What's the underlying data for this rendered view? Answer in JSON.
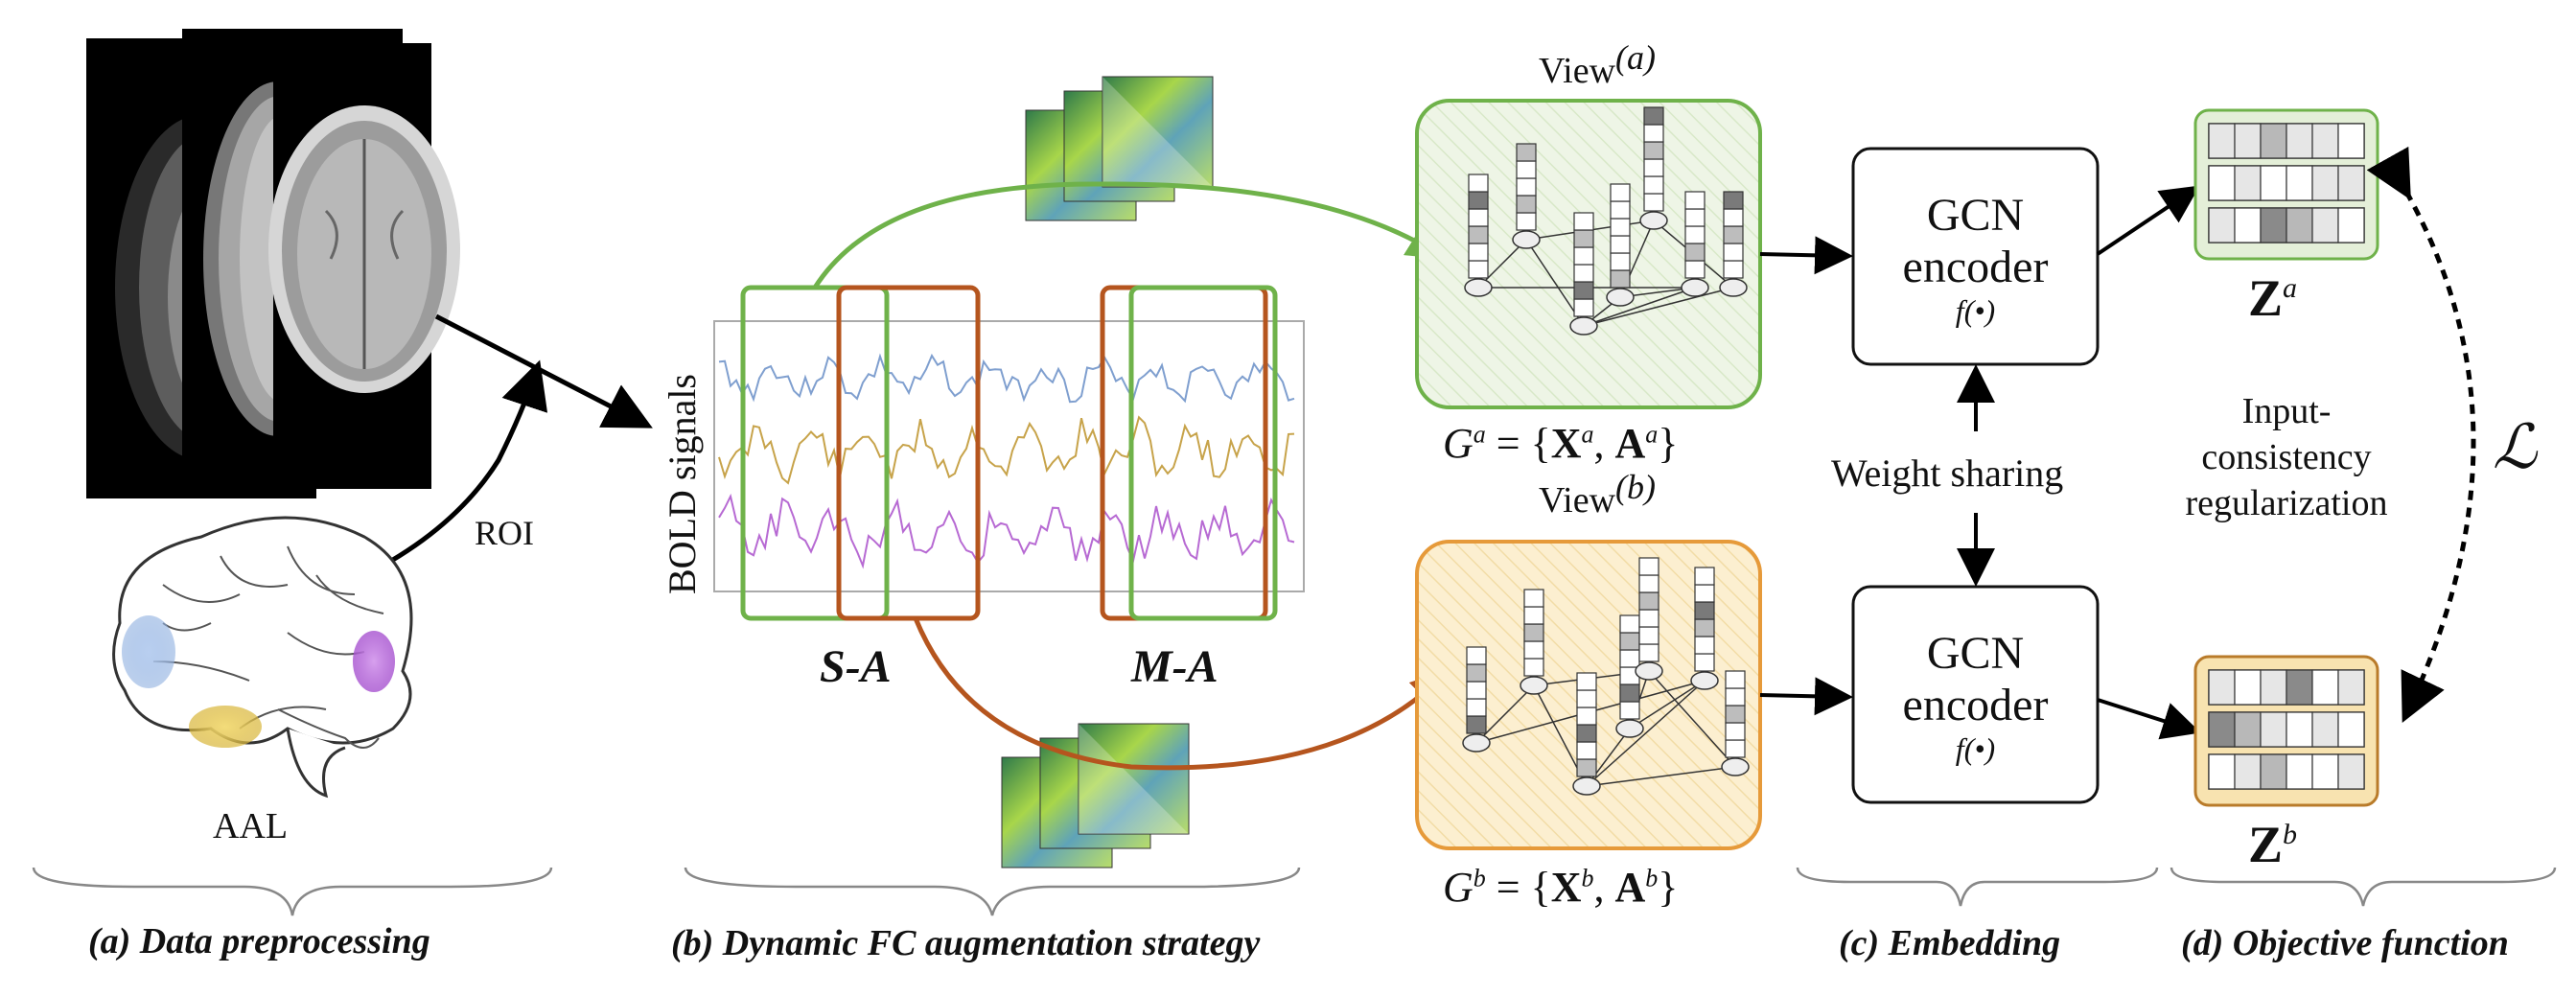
{
  "preprocessing": {
    "roi_label": "ROI",
    "atlas_label": "AAL",
    "section_label": "(a) Data preprocessing"
  },
  "augmentation": {
    "axis_label": "BOLD signals",
    "single_label": "S-A",
    "multi_label": "M-A",
    "section_label": "(b) Dynamic FC augmentation strategy"
  },
  "views": {
    "a": {
      "title": "View",
      "tag": "(a)",
      "graph_prefix": "G",
      "sup": "a",
      "eq": "= {",
      "X": "X",
      "A": "A",
      "close": "}"
    },
    "b": {
      "title": "View",
      "tag": "(b)",
      "graph_prefix": "G",
      "sup": "b",
      "eq": "= {",
      "X": "X",
      "A": "A",
      "close": "}"
    }
  },
  "embedding": {
    "encoder_line1": "GCN",
    "encoder_line2": "encoder",
    "encoder_fn": "f(•)",
    "weight_sharing": "Weight sharing",
    "section_label": "(c) Embedding"
  },
  "objective": {
    "z_symbol": "Z",
    "za_sup": "a",
    "zb_sup": "b",
    "reg_line1": "Input-",
    "reg_line2": "consistency",
    "reg_line3": "regularization",
    "loss_symbol": "ℒ",
    "section_label": "(d) Objective function"
  },
  "colors": {
    "green": "#6fb24a",
    "orange": "#b5551e",
    "view_a_fill": "#eaf3df",
    "view_b_fill": "#fbecc6",
    "view_b_stroke": "#e69a3a",
    "signal_blue": "#7f9fcf",
    "signal_yellow": "#c7a34a",
    "signal_purple": "#b76ad3"
  }
}
